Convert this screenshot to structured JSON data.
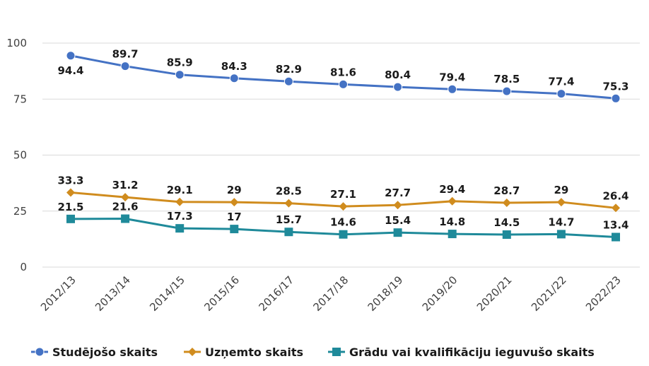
{
  "chart_data": {
    "type": "line",
    "categories": [
      "2012/13",
      "2013/14",
      "2014/15",
      "2015/16",
      "2016/17",
      "2017/18",
      "2018/19",
      "2019/20",
      "2020/21",
      "2021/22",
      "2022/23"
    ],
    "ylim": [
      0,
      100
    ],
    "yticks": [
      0,
      25,
      50,
      75,
      100
    ],
    "grid": true,
    "legend_position": "bottom",
    "series": [
      {
        "name": "Studējošo skaits",
        "color": "#4472c4",
        "marker": "circle",
        "values": [
          94.4,
          89.7,
          85.9,
          84.3,
          82.9,
          81.6,
          80.4,
          79.4,
          78.5,
          77.4,
          75.3
        ],
        "labels": [
          "94.4",
          "89.7",
          "85.9",
          "84.3",
          "82.9",
          "81.6",
          "80.4",
          "79.4",
          "78.5",
          "77.4",
          "75.3"
        ]
      },
      {
        "name": "Uzņemto skaits",
        "color": "#d08c1e",
        "marker": "diamond",
        "values": [
          33.3,
          31.2,
          29.1,
          29,
          28.5,
          27.1,
          27.7,
          29.4,
          28.7,
          29,
          26.4
        ],
        "labels": [
          "33.3",
          "31.2",
          "29.1",
          "29",
          "28.5",
          "27.1",
          "27.7",
          "29.4",
          "28.7",
          "29",
          "26.4"
        ]
      },
      {
        "name": "Grādu vai kvalifikāciju ieguvušo skaits",
        "color": "#1f8a9a",
        "marker": "square",
        "values": [
          21.5,
          21.6,
          17.3,
          17,
          15.7,
          14.6,
          15.4,
          14.8,
          14.5,
          14.7,
          13.4
        ],
        "labels": [
          "21.5",
          "21.6",
          "17.3",
          "17",
          "15.7",
          "14.6",
          "15.4",
          "14.8",
          "14.5",
          "14.7",
          "13.4"
        ]
      }
    ]
  }
}
